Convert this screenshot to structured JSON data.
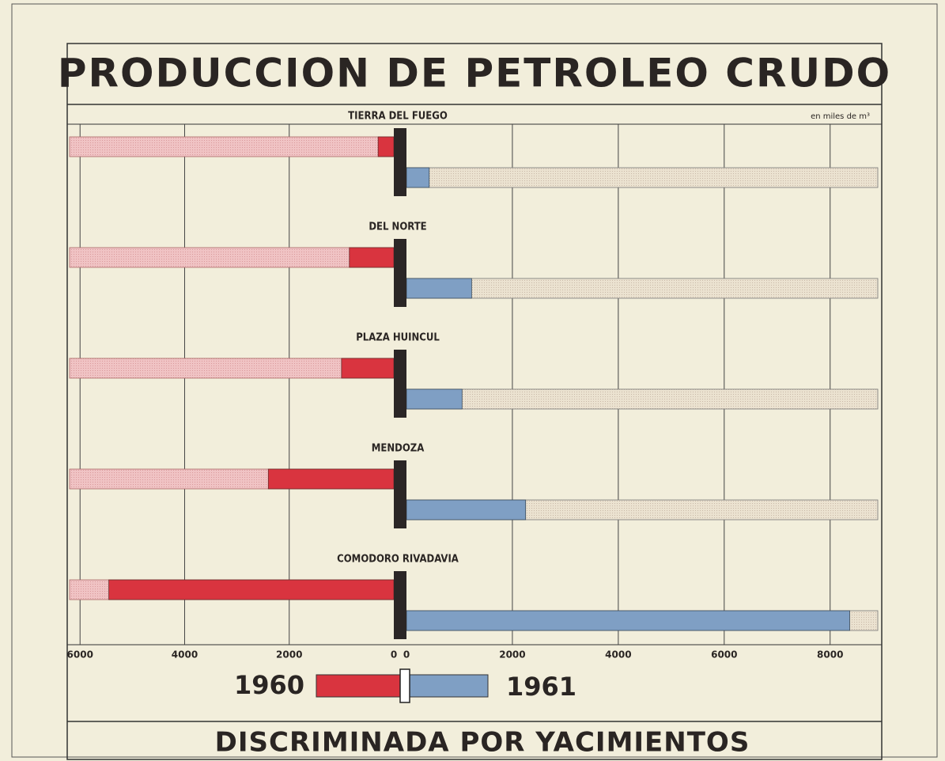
{
  "chart_data": {
    "type": "butterfly-bar",
    "title": "PRODUCCION DE PETROLEO CRUDO",
    "subtitle": "DISCRIMINADA POR YACIMIENTOS",
    "unit_note": "en miles de m³",
    "categories": [
      "TIERRA DEL FUEGO",
      "DEL NORTE",
      "PLAZA HUINCUL",
      "MENDOZA",
      "COMODORO RIVADAVIA"
    ],
    "series": [
      {
        "name": "1960",
        "color": "#d9343f",
        "side": "left",
        "values": [
          300,
          850,
          1000,
          2400,
          5450
        ]
      },
      {
        "name": "1961",
        "color": "#7f9fc4",
        "side": "right",
        "values": [
          430,
          1230,
          1050,
          2250,
          8370
        ]
      }
    ],
    "left_xlim": [
      0,
      6200
    ],
    "left_xticks": [
      6000,
      4000,
      2000,
      0
    ],
    "right_xlim": [
      0,
      8900
    ],
    "right_xticks": [
      0,
      2000,
      4000,
      6000,
      8000
    ],
    "grid": true
  }
}
